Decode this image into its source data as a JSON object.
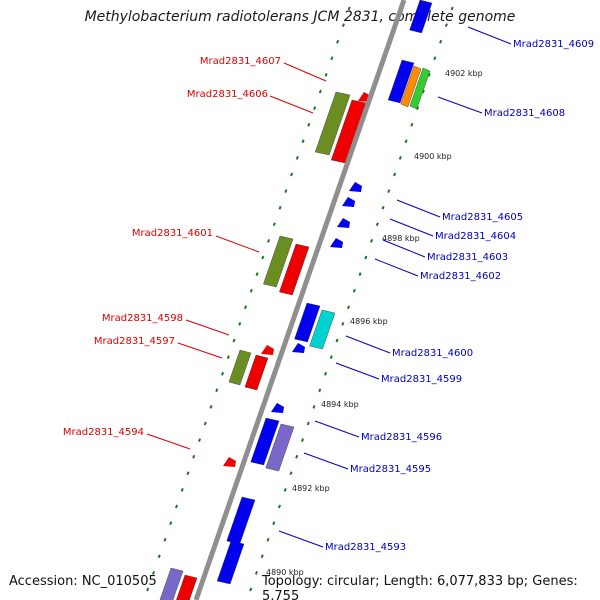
{
  "title": "Methylobacterium radiotolerans JCM 2831, complete genome",
  "footer": {
    "accession": "Accession: NC_010505",
    "summary": "Topology: circular; Length: 6,077,833 bp; Genes: 5,755"
  },
  "colors": {
    "reverse_label": "#dd0000",
    "forward_label": "#0000bb",
    "backbone": "#8f8f8f",
    "tick": "#1a7a1a",
    "red": "#ee0000",
    "green": "#6b8e23",
    "blue": "#0000ee",
    "cyan": "#00d2d2",
    "purple": "#7a68c8",
    "orange": "#ff8c00",
    "lime": "#33cc33"
  },
  "scale_labels": [
    "4902 kbp",
    "4900 kbp",
    "4898 kbp",
    "4896 kbp",
    "4894 kbp",
    "4892 kbp",
    "4890 kbp"
  ],
  "genes_left": [
    "Mrad2831_4607",
    "Mrad2831_4606",
    "Mrad2831_4601",
    "Mrad2831_4598",
    "Mrad2831_4597",
    "Mrad2831_4594"
  ],
  "genes_right": [
    "Mrad2831_4609",
    "Mrad2831_4608",
    "Mrad2831_4605",
    "Mrad2831_4604",
    "Mrad2831_4603",
    "Mrad2831_4602",
    "Mrad2831_4600",
    "Mrad2831_4599",
    "Mrad2831_4596",
    "Mrad2831_4595",
    "Mrad2831_4593"
  ]
}
